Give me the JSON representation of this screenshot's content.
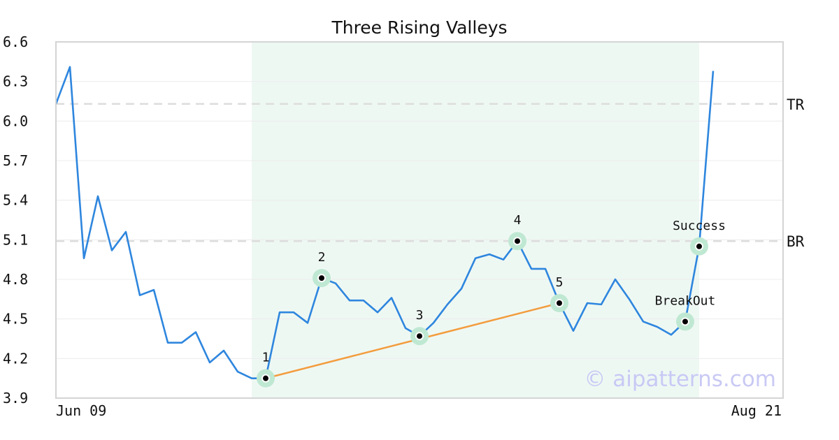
{
  "chart_data": {
    "type": "line",
    "title": "Three Rising Valleys",
    "xlabel": "",
    "ylabel": "",
    "x_start_label": "Jun 09",
    "x_end_label": "Aug 21",
    "ylim": [
      3.9,
      6.6
    ],
    "yticks": [
      "3.9",
      "4.2",
      "4.5",
      "4.8",
      "5.1",
      "5.4",
      "5.7",
      "6.0",
      "6.3",
      "6.6"
    ],
    "grid": true,
    "series": [
      {
        "values": [
          6.13,
          6.41,
          4.96,
          5.43,
          5.02,
          5.16,
          4.68,
          4.72,
          4.32,
          4.32,
          4.4,
          4.17,
          4.26,
          4.1,
          4.05,
          4.05,
          4.55,
          4.55,
          4.47,
          4.81,
          4.77,
          4.64,
          4.64,
          4.55,
          4.66,
          4.43,
          4.37,
          4.47,
          4.61,
          4.73,
          4.96,
          4.99,
          4.95,
          5.09,
          4.88,
          4.88,
          4.62,
          4.41,
          4.62,
          4.61,
          4.8,
          4.65,
          4.48,
          4.44,
          4.38,
          4.48,
          5.05,
          6.38
        ]
      }
    ],
    "reference_lines": [
      {
        "label": "TR",
        "value": 6.13
      },
      {
        "label": "BR",
        "value": 5.09
      }
    ],
    "pattern_region": {
      "start_index": 13,
      "end_index": 46
    },
    "trendline": {
      "from_index": 15,
      "to_index": 36
    },
    "points": [
      {
        "label": "1",
        "index": 15,
        "value": 4.05
      },
      {
        "label": "2",
        "index": 19,
        "value": 4.81
      },
      {
        "label": "3",
        "index": 26,
        "value": 4.37
      },
      {
        "label": "4",
        "index": 33,
        "value": 5.09
      },
      {
        "label": "5",
        "index": 36,
        "value": 4.62
      },
      {
        "label": "BreakOut",
        "index": 45,
        "value": 4.48
      },
      {
        "label": "Success",
        "index": 46,
        "value": 5.05
      }
    ],
    "watermark": "© aipatterns.com",
    "colors": {
      "line": "#2e86de",
      "trendline": "#f39c3d",
      "region": "#eef8f3",
      "marker_halo": "#bfe8d2",
      "reference": "#dddddd",
      "watermark": "#c9c9f5"
    }
  }
}
